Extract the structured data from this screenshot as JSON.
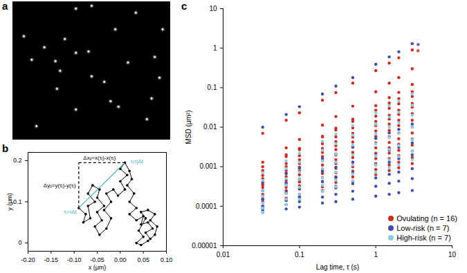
{
  "chart_data": [
    {
      "panel": "a",
      "type": "scatter",
      "tick_labels": false,
      "color": "#ffffff",
      "marker": "circle",
      "xlim": [
        0,
        100
      ],
      "ylim": [
        0,
        100
      ],
      "x": [
        40,
        50,
        78,
        65,
        95,
        7,
        33,
        40,
        12,
        27,
        73,
        90,
        30,
        50,
        58,
        93,
        28,
        62,
        67,
        40,
        15,
        85,
        20,
        88,
        48
      ],
      "y": [
        95,
        97,
        92,
        80,
        80,
        75,
        73,
        63,
        58,
        57,
        56,
        60,
        50,
        46,
        42,
        45,
        37,
        28,
        24,
        22,
        10,
        15,
        67,
        30,
        64
      ]
    },
    {
      "panel": "b",
      "type": "line",
      "color": "#000000",
      "marker": "circle",
      "xlabel": "x (μm)",
      "ylabel": "y (μm)",
      "xlim": [
        -0.2,
        0.1
      ],
      "ylim": [
        -0.02,
        0.22
      ],
      "xticks": [
        {
          "value": -0.2,
          "label": "-0.20"
        },
        {
          "value": -0.15,
          "label": "-0.15"
        },
        {
          "value": -0.1,
          "label": "-0.10"
        },
        {
          "value": -0.05,
          "label": "-0.05"
        },
        {
          "value": 0,
          "label": "0.00"
        },
        {
          "value": 0.05,
          "label": "0.05"
        },
        {
          "value": 0.1,
          "label": "0.10"
        }
      ],
      "yticks": [
        0,
        0.1,
        0.2
      ],
      "x": [
        -0.09,
        -0.075,
        -0.08,
        -0.065,
        -0.07,
        -0.055,
        -0.07,
        -0.06,
        -0.045,
        -0.05,
        -0.035,
        -0.05,
        -0.04,
        -0.055,
        -0.045,
        -0.03,
        -0.02,
        -0.035,
        -0.02,
        -0.03,
        -0.015,
        -0.005,
        0.01,
        0.0,
        0.015,
        0.0,
        0.01,
        0.02,
        0.025,
        0.015,
        0.03,
        0.02,
        0.035,
        0.02,
        0.035,
        0.05,
        0.045,
        0.06,
        0.07,
        0.055,
        0.065,
        0.075,
        0.08,
        0.065,
        0.075,
        0.06,
        0.045,
        0.055,
        0.04,
        0.05,
        0.035,
        0.045,
        0.06
      ],
      "y": [
        0.085,
        0.07,
        0.05,
        0.06,
        0.09,
        0.1,
        0.12,
        0.14,
        0.13,
        0.11,
        0.09,
        0.075,
        0.055,
        0.04,
        0.02,
        0.035,
        0.06,
        0.08,
        0.1,
        0.12,
        0.13,
        0.115,
        0.13,
        0.15,
        0.165,
        0.18,
        0.195,
        0.175,
        0.155,
        0.14,
        0.12,
        0.1,
        0.085,
        0.07,
        0.055,
        0.065,
        0.045,
        0.05,
        0.035,
        0.025,
        0.01,
        0.02,
        0.04,
        0.055,
        0.07,
        0.08,
        0.075,
        0.06,
        0.03,
        0.015,
        0.0,
        -0.005,
        0.005
      ],
      "segments": [
        {
          "x1": -0.09,
          "y1": 0.085,
          "x2": 0.01,
          "y2": 0.195,
          "color": "#3cb4c8",
          "line_style": "solid"
        },
        {
          "x1": -0.09,
          "y1": 0.085,
          "x2": -0.09,
          "y2": 0.195,
          "color": "#000000",
          "line_style": "dashed"
        },
        {
          "x1": -0.09,
          "y1": 0.195,
          "x2": 0.01,
          "y2": 0.195,
          "color": "#000000",
          "line_style": "dashed"
        }
      ],
      "annotations": [
        {
          "text": "Δxᵢⱼ=x(τⱼ)-x(τᵢ)",
          "x": -0.045,
          "y": 0.207,
          "color": "#000000"
        },
        {
          "text": "Δyᵢⱼ=y(τⱼ)-y(τᵢ)",
          "x": -0.096,
          "y": 0.14,
          "color": "#000000"
        },
        {
          "text": "τᵢ=iΔt",
          "x": -0.095,
          "y": 0.075,
          "color": "#3cb4c8"
        },
        {
          "text": "τⱼ=jΔt",
          "x": 0.022,
          "y": 0.198,
          "color": "#3cb4c8"
        }
      ]
    },
    {
      "panel": "c",
      "type": "scatter",
      "log": true,
      "legend": "lower right",
      "marker": "circle",
      "xlabel": "Lag time, τ (s)",
      "ylabel": "MSD (μm²)",
      "xlim": [
        0.01,
        10
      ],
      "ylim": [
        1e-05,
        10
      ],
      "xticks": [
        0.01,
        0.1,
        1,
        10
      ],
      "yticks": [
        1e-05,
        0.0001,
        0.001,
        0.01,
        0.1,
        1,
        10
      ],
      "x": [
        0.033,
        0.067,
        0.1,
        0.2,
        0.3,
        0.5,
        1,
        1.5,
        2,
        3
      ],
      "series": [
        {
          "name": "Ovulating (n = 16)",
          "color": "#d42a1e",
          "values": [
            [
              0.007,
              0.015,
              0.023,
              0.048,
              0.075,
              0.13,
              0.27,
              0.42,
              0.57,
              0.9
            ],
            [
              0.0013,
              0.003,
              0.0049,
              0.0113,
              0.0186,
              0.034,
              0.079,
              0.13,
              0.18,
              0.3
            ],
            [
              0.0008,
              0.0018,
              0.0027,
              0.0059,
              0.0094,
              0.016,
              0.035,
              0.056,
              0.076,
              0.12
            ],
            [
              0.001,
              0.002,
              0.0029,
              0.0057,
              0.0085,
              0.014,
              0.027,
              0.041,
              0.053,
              0.079
            ],
            [
              0.0006,
              0.0012,
              0.0019,
              0.0038,
              0.0057,
              0.0096,
              0.019,
              0.03,
              0.039,
              0.06
            ],
            [
              0.0005,
              0.001,
              0.0015,
              0.0029,
              0.0043,
              0.007,
              0.014,
              0.02,
              0.027,
              0.04
            ],
            [
              0.0004,
              0.0008,
              0.0012,
              0.0023,
              0.0034,
              0.0056,
              0.011,
              0.016,
              0.021,
              0.032
            ],
            [
              0.00035,
              0.00067,
              0.00097,
              0.0018,
              0.0027,
              0.0042,
              0.008,
              0.012,
              0.015,
              0.022
            ],
            [
              0.0003,
              0.00056,
              0.00078,
              0.0014,
              0.002,
              0.0032,
              0.0058,
              0.0083,
              0.011,
              0.015
            ],
            [
              0.00025,
              0.00045,
              0.00062,
              0.0011,
              0.0015,
              0.0023,
              0.004,
              0.0057,
              0.0071,
              0.01
            ],
            [
              0.0002,
              0.00035,
              0.00048,
              0.00083,
              0.0012,
              0.0017,
              0.003,
              0.0041,
              0.0051,
              0.0071
            ],
            [
              0.00018,
              0.0003,
              0.00041,
              0.00067,
              0.00091,
              0.0013,
              0.0022,
              0.003,
              0.0037,
              0.005
            ],
            [
              0.00015,
              0.00025,
              0.00033,
              0.00053,
              0.0007,
              0.001,
              0.0016,
              0.0022,
              0.0026,
              0.0035
            ],
            [
              0.00013,
              0.00021,
              0.00027,
              0.00042,
              0.00055,
              0.00077,
              0.0012,
              0.0016,
              0.0019,
              0.0025
            ],
            [
              0.0001,
              0.00016,
              0.0002,
              0.00031,
              0.0004,
              0.00055,
              0.00085,
              0.0011,
              0.0013,
              0.0017
            ],
            [
              9e-05,
              0.00014,
              0.00017,
              0.00025,
              0.00032,
              0.00042,
              0.00063,
              0.0008,
              0.00094,
              0.0012
            ]
          ]
        },
        {
          "name": "Low-risk (n = 7)",
          "color": "#3d4eb0",
          "values": [
            [
              0.01,
              0.021,
              0.033,
              0.069,
              0.11,
              0.18,
              0.39,
              0.6,
              0.81,
              1.3
            ],
            [
              0.0004,
              0.00068,
              0.00092,
              0.0016,
              0.0021,
              0.0031,
              0.0052,
              0.0072,
              0.0088,
              0.012
            ],
            [
              0.00025,
              0.00039,
              0.00049,
              0.00075,
              0.00097,
              0.0013,
              0.002,
              0.0026,
              0.0031,
              0.004
            ],
            [
              0.00015,
              0.00023,
              0.00028,
              0.00042,
              0.00053,
              0.00071,
              0.0011,
              0.0013,
              0.0016,
              0.002
            ],
            [
              0.0001,
              0.00014,
              0.00017,
              0.00024,
              0.00029,
              0.00037,
              0.00052,
              0.00064,
              0.00073,
              0.00089
            ],
            [
              8e-05,
              0.00011,
              0.00013,
              0.00017,
              0.0002,
              0.00024,
              0.00032,
              0.00038,
              0.00043,
              0.0005
            ],
            [
              7e-05,
              8.5e-05,
              9.5e-05,
              0.00012,
              0.00013,
              0.00015,
              0.00018,
              0.0002,
              0.00022,
              0.00025
            ]
          ]
        },
        {
          "name": "High-risk (n = 7)",
          "color": "#8ccbe6",
          "values": [
            [
              0.0007,
              0.0014,
              0.0022,
              0.0044,
              0.0067,
              0.011,
              0.023,
              0.035,
              0.046,
              0.07
            ],
            [
              0.00045,
              0.0009,
              0.0013,
              0.0026,
              0.0038,
              0.0063,
              0.012,
              0.018,
              0.024,
              0.036
            ],
            [
              0.00025,
              0.0005,
              0.00073,
              0.0014,
              0.0021,
              0.0035,
              0.0068,
              0.01,
              0.013,
              0.02
            ],
            [
              0.00018,
              0.00034,
              0.00048,
              0.0009,
              0.0013,
              0.002,
              0.0038,
              0.0055,
              0.007,
              0.01
            ],
            [
              0.00012,
              0.00021,
              0.0003,
              0.00052,
              0.00073,
              0.0011,
              0.0019,
              0.0027,
              0.0034,
              0.0048
            ],
            [
              9e-05,
              0.00015,
              0.0002,
              0.00034,
              0.00046,
              0.00066,
              0.0011,
              0.0015,
              0.0018,
              0.0025
            ],
            [
              7e-05,
              0.00011,
              0.00015,
              0.00024,
              0.00031,
              0.00044,
              0.00071,
              0.00094,
              0.0011,
              0.0015
            ]
          ]
        }
      ],
      "annotations": [
        {
          "text": "*",
          "x": 3.4,
          "y": 1.3,
          "color": "#3d4eb0"
        },
        {
          "text": "*",
          "x": 3.4,
          "y": 0.9,
          "color": "#d42a1e"
        }
      ]
    }
  ]
}
